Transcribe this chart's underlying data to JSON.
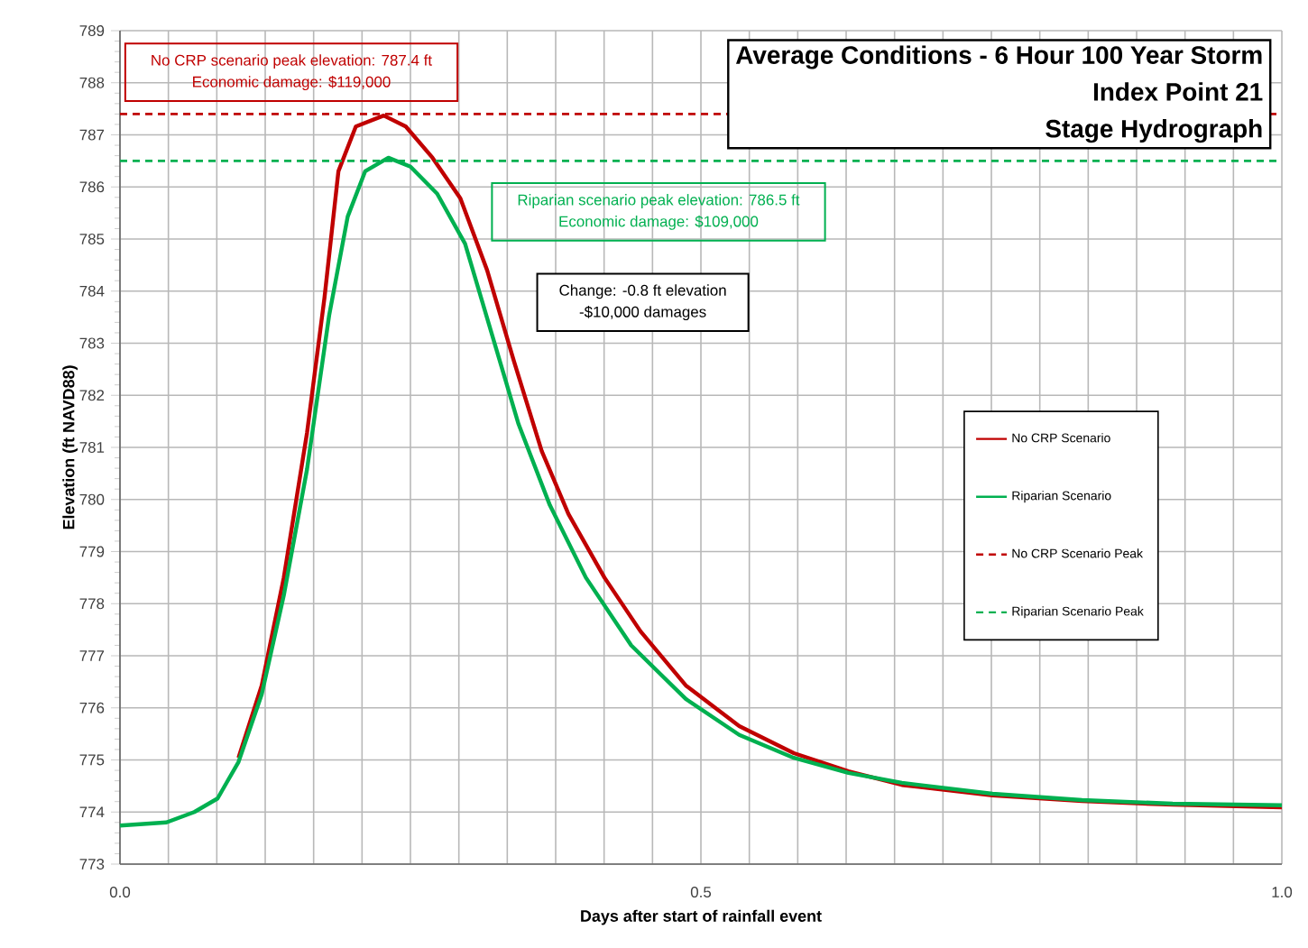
{
  "chart_data": {
    "type": "line",
    "title": "Average Conditions - 6 Hour 100 Year Storm",
    "subtitle": "Index Point 21",
    "xlabel": "Days after start of rainfall event",
    "ylabel": "Elevation (ft NAVD88)",
    "xlim": [
      0,
      1
    ],
    "ylim": [
      773,
      789
    ],
    "xticks": [
      {
        "value": 0,
        "label": "0.0"
      },
      {
        "value": 0.041667,
        "label": null
      },
      {
        "value": 0.083333,
        "label": null
      },
      {
        "value": 0.125,
        "label": null
      },
      {
        "value": 0.166667,
        "label": null
      },
      {
        "value": 0.208333,
        "label": null
      },
      {
        "value": 0.25,
        "label": null
      },
      {
        "value": 0.291667,
        "label": null
      },
      {
        "value": 0.333333,
        "label": null
      },
      {
        "value": 0.375,
        "label": null
      },
      {
        "value": 0.416667,
        "label": null
      },
      {
        "value": 0.458333,
        "label": null
      },
      {
        "value": 0.5,
        "label": "0.5"
      },
      {
        "value": 0.541667,
        "label": null
      },
      {
        "value": 0.583333,
        "label": null
      },
      {
        "value": 0.625,
        "label": null
      },
      {
        "value": 0.666667,
        "label": null
      },
      {
        "value": 0.708333,
        "label": null
      },
      {
        "value": 0.75,
        "label": null
      },
      {
        "value": 0.791667,
        "label": null
      },
      {
        "value": 0.833333,
        "label": null
      },
      {
        "value": 0.875,
        "label": null
      },
      {
        "value": 0.916667,
        "label": null
      },
      {
        "value": 0.958333,
        "label": null
      },
      {
        "value": 1,
        "label": "1.0"
      }
    ],
    "yticks": [
      773,
      774,
      775,
      776,
      777,
      778,
      779,
      780,
      781,
      782,
      783,
      784,
      785,
      786,
      787,
      788,
      789
    ],
    "grid": true,
    "legend": "right",
    "marker": "none",
    "series": [
      {
        "name": "No CRP Scenario",
        "color": "#c00000",
        "x": [
          0.102,
          0.122,
          0.141,
          0.161,
          0.176,
          0.188,
          0.203,
          0.227,
          0.246,
          0.269,
          0.293,
          0.316,
          0.339,
          0.363,
          0.386,
          0.417,
          0.448,
          0.487,
          0.533,
          0.58,
          0.627,
          0.673,
          0.751,
          0.828,
          0.906,
          1.0
        ],
        "values": [
          775.04,
          776.43,
          778.5,
          781.28,
          783.87,
          786.3,
          787.16,
          787.37,
          787.16,
          786.56,
          785.78,
          784.4,
          782.66,
          780.93,
          779.72,
          778.5,
          777.47,
          776.43,
          775.65,
          775.13,
          774.78,
          774.52,
          774.32,
          774.21,
          774.14,
          774.09
        ]
      },
      {
        "name": "Riparian Scenario",
        "color": "#00b050",
        "x": [
          0,
          0.04,
          0.064,
          0.084,
          0.102,
          0.122,
          0.141,
          0.161,
          0.18,
          0.196,
          0.211,
          0.231,
          0.25,
          0.273,
          0.297,
          0.32,
          0.343,
          0.37,
          0.401,
          0.44,
          0.487,
          0.533,
          0.58,
          0.627,
          0.673,
          0.751,
          0.828,
          0.906,
          1.0
        ],
        "values": [
          773.74,
          773.8,
          774.0,
          774.26,
          774.96,
          776.26,
          778.16,
          780.58,
          783.53,
          785.43,
          786.3,
          786.56,
          786.39,
          785.87,
          784.91,
          783.18,
          781.45,
          779.89,
          778.5,
          777.2,
          776.17,
          775.48,
          775.04,
          774.75,
          774.56,
          774.35,
          774.23,
          774.16,
          774.13
        ]
      }
    ],
    "ref_lines": [
      {
        "axis": "y",
        "value": 787.4,
        "label": "No CRP Scenario Peak",
        "color": "#c00000",
        "line_style": "dashed"
      },
      {
        "axis": "y",
        "value": 786.5,
        "label": "Riparian Scenario Peak",
        "color": "#00b050",
        "line_style": "dashed"
      }
    ],
    "annotations": [
      "No CRP scenario peak elevation: 787.4 ft",
      "Economic damage: $119,000",
      "Riparian scenario peak elevation: 786.5 ft",
      "Economic damage: $109,000",
      "Change: -0.8 ft elevation",
      "-$10,000 damages",
      "Stage Hydrograph"
    ]
  }
}
